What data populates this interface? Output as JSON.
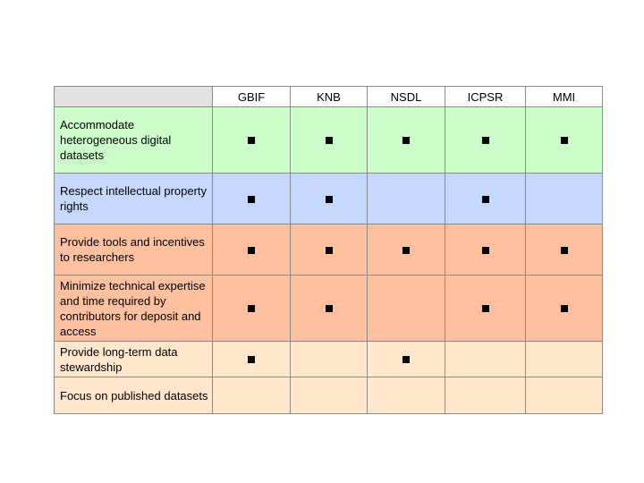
{
  "columns": [
    "GBIF",
    "KNB",
    "NSDL",
    "ICPSR",
    "MMI"
  ],
  "rows": [
    {
      "label": "Accommodate heterogeneous digital datasets",
      "marks": [
        true,
        true,
        true,
        true,
        true
      ],
      "color": "#ccfecc"
    },
    {
      "label": "Respect intellectual property rights",
      "marks": [
        true,
        true,
        false,
        true,
        false
      ],
      "color": "#c6d8fe"
    },
    {
      "label": "Provide tools and incentives to researchers",
      "marks": [
        true,
        true,
        true,
        true,
        true
      ],
      "color": "#ffc0a0"
    },
    {
      "label": "Minimize technical expertise and time required by contributors for deposit and access",
      "marks": [
        true,
        true,
        false,
        true,
        true
      ],
      "color": "#ffc0a0"
    },
    {
      "label": "Provide long-term data stewardship",
      "marks": [
        true,
        false,
        true,
        false,
        false
      ],
      "color": "#ffe6cd"
    },
    {
      "label": "Focus on published datasets",
      "marks": [
        false,
        false,
        false,
        false,
        false
      ],
      "color": "#ffe6cd"
    }
  ],
  "mark_icon": "filled-square-icon"
}
